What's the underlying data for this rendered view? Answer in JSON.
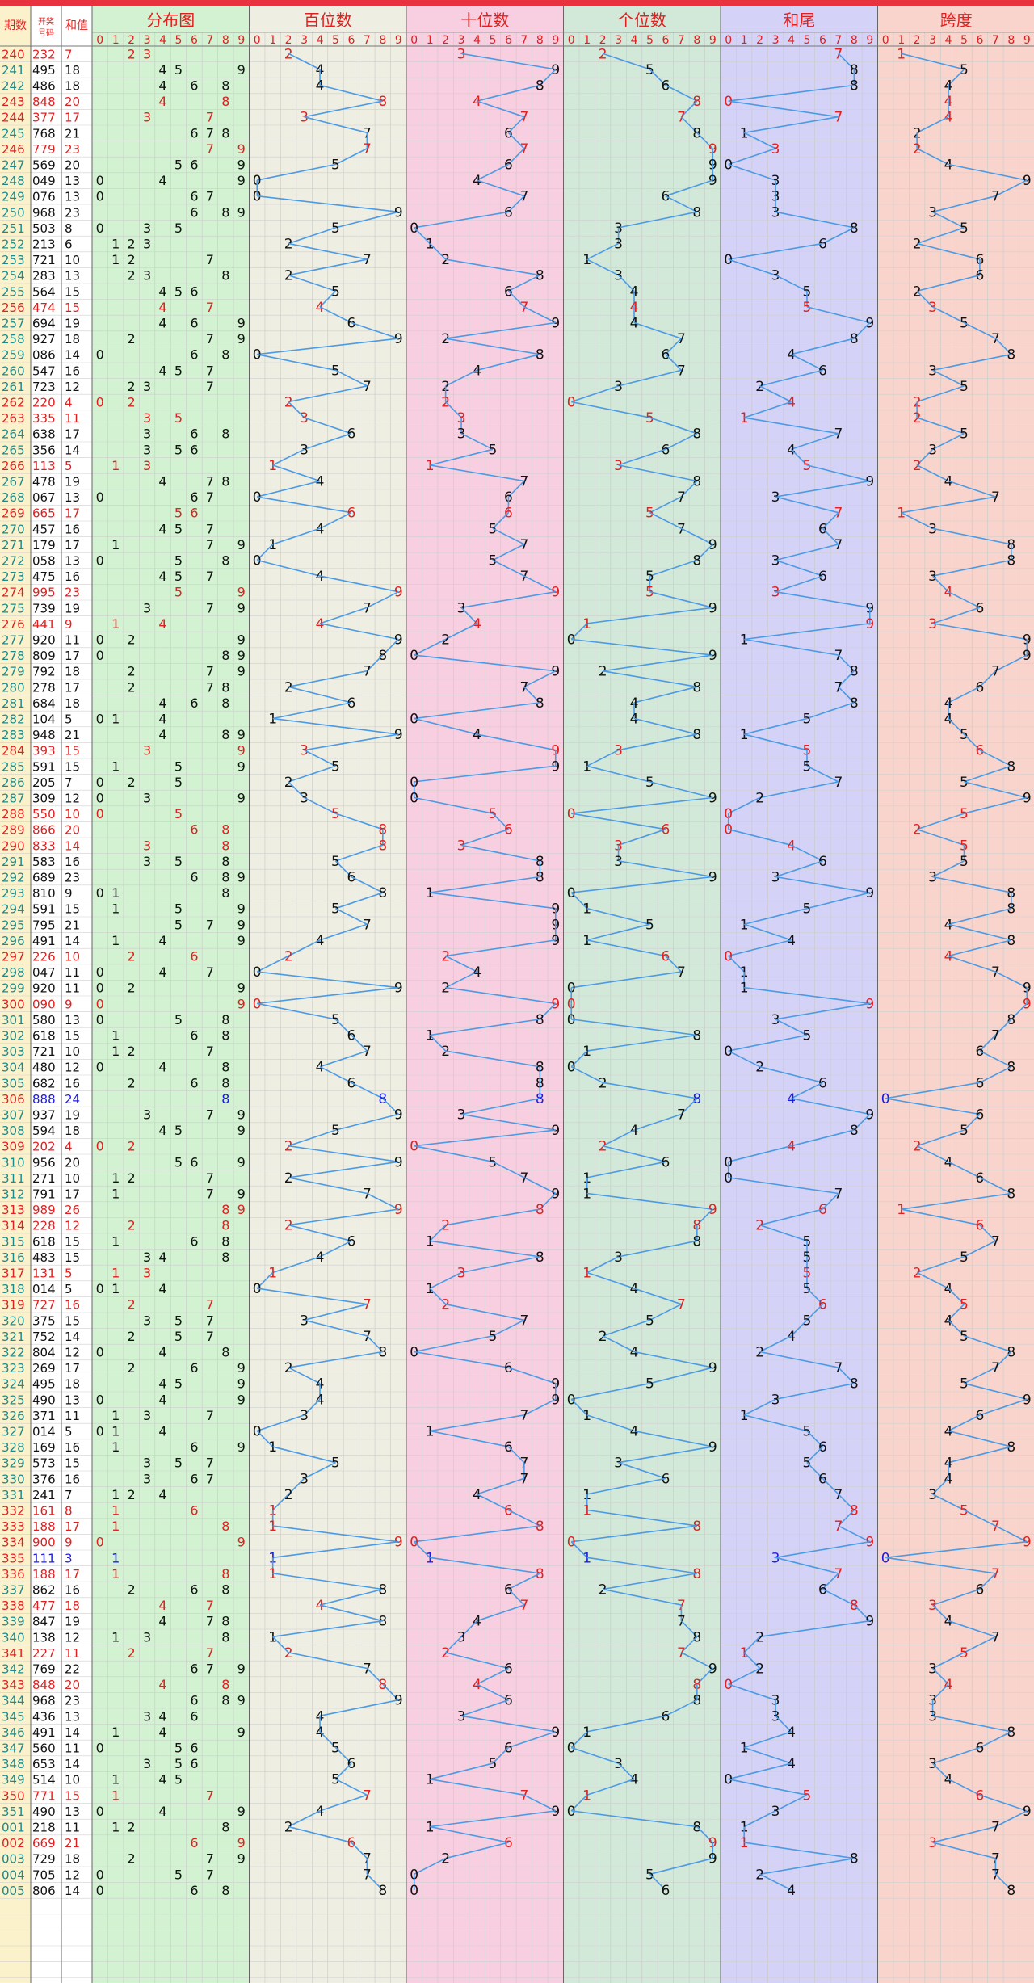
{
  "headers": {
    "period": "期数",
    "number": "开奖号码",
    "sum": "和值",
    "groups": [
      "分布图",
      "百位数",
      "十位数",
      "个位数",
      "和尾",
      "跨度"
    ],
    "digits": [
      "0",
      "1",
      "2",
      "3",
      "4",
      "5",
      "6",
      "7",
      "8",
      "9"
    ]
  },
  "colors": {
    "top_bar": "#e8323f",
    "period_bg": "#fbf2cc",
    "dist_bg": "#d2f2d2",
    "hundreds_bg": "#efeee2",
    "tens_bg": "#f8cfe0",
    "units_bg": "#d2e8d8",
    "sumtail_bg": "#d4d2f6",
    "span_bg": "#f8d4cc",
    "line": "#4a9ae6",
    "red": "#e02020",
    "blue": "#1c1ce0",
    "period_text": "#1a8a8a"
  },
  "chart_data": {
    "type": "table",
    "draws": [
      [
        "240",
        "232"
      ],
      [
        "241",
        "495"
      ],
      [
        "242",
        "486"
      ],
      [
        "243",
        "848"
      ],
      [
        "244",
        "377"
      ],
      [
        "245",
        "768"
      ],
      [
        "246",
        "779"
      ],
      [
        "247",
        "569"
      ],
      [
        "248",
        "049"
      ],
      [
        "249",
        "076"
      ],
      [
        "250",
        "968"
      ],
      [
        "251",
        "503"
      ],
      [
        "252",
        "213"
      ],
      [
        "253",
        "721"
      ],
      [
        "254",
        "283"
      ],
      [
        "255",
        "564"
      ],
      [
        "256",
        "474"
      ],
      [
        "257",
        "694"
      ],
      [
        "258",
        "927"
      ],
      [
        "259",
        "086"
      ],
      [
        "260",
        "547"
      ],
      [
        "261",
        "723"
      ],
      [
        "262",
        "220"
      ],
      [
        "263",
        "335"
      ],
      [
        "264",
        "638"
      ],
      [
        "265",
        "356"
      ],
      [
        "266",
        "113"
      ],
      [
        "267",
        "478"
      ],
      [
        "268",
        "067"
      ],
      [
        "269",
        "665"
      ],
      [
        "270",
        "457"
      ],
      [
        "271",
        "179"
      ],
      [
        "272",
        "058"
      ],
      [
        "273",
        "475"
      ],
      [
        "274",
        "995"
      ],
      [
        "275",
        "739"
      ],
      [
        "276",
        "441"
      ],
      [
        "277",
        "920"
      ],
      [
        "278",
        "809"
      ],
      [
        "279",
        "792"
      ],
      [
        "280",
        "278"
      ],
      [
        "281",
        "684"
      ],
      [
        "282",
        "104"
      ],
      [
        "283",
        "948"
      ],
      [
        "284",
        "393"
      ],
      [
        "285",
        "591"
      ],
      [
        "286",
        "205"
      ],
      [
        "287",
        "309"
      ],
      [
        "288",
        "550"
      ],
      [
        "289",
        "866"
      ],
      [
        "290",
        "833"
      ],
      [
        "291",
        "583"
      ],
      [
        "292",
        "689"
      ],
      [
        "293",
        "810"
      ],
      [
        "294",
        "591"
      ],
      [
        "295",
        "795"
      ],
      [
        "296",
        "491"
      ],
      [
        "297",
        "226"
      ],
      [
        "298",
        "047"
      ],
      [
        "299",
        "920"
      ],
      [
        "300",
        "090"
      ],
      [
        "301",
        "580"
      ],
      [
        "302",
        "618"
      ],
      [
        "303",
        "721"
      ],
      [
        "304",
        "480"
      ],
      [
        "305",
        "682"
      ],
      [
        "306",
        "888"
      ],
      [
        "307",
        "937"
      ],
      [
        "308",
        "594"
      ],
      [
        "309",
        "202"
      ],
      [
        "310",
        "956"
      ],
      [
        "311",
        "271"
      ],
      [
        "312",
        "791"
      ],
      [
        "313",
        "989"
      ],
      [
        "314",
        "228"
      ],
      [
        "315",
        "618"
      ],
      [
        "316",
        "483"
      ],
      [
        "317",
        "131"
      ],
      [
        "318",
        "014"
      ],
      [
        "319",
        "727"
      ],
      [
        "320",
        "375"
      ],
      [
        "321",
        "752"
      ],
      [
        "322",
        "804"
      ],
      [
        "323",
        "269"
      ],
      [
        "324",
        "495"
      ],
      [
        "325",
        "490"
      ],
      [
        "326",
        "371"
      ],
      [
        "327",
        "014"
      ],
      [
        "328",
        "169"
      ],
      [
        "329",
        "573"
      ],
      [
        "330",
        "376"
      ],
      [
        "331",
        "241"
      ],
      [
        "332",
        "161"
      ],
      [
        "333",
        "188"
      ],
      [
        "334",
        "900"
      ],
      [
        "335",
        "111"
      ],
      [
        "336",
        "188"
      ],
      [
        "337",
        "862"
      ],
      [
        "338",
        "477"
      ],
      [
        "339",
        "847"
      ],
      [
        "340",
        "138"
      ],
      [
        "341",
        "227"
      ],
      [
        "342",
        "769"
      ],
      [
        "343",
        "848"
      ],
      [
        "344",
        "968"
      ],
      [
        "345",
        "436"
      ],
      [
        "346",
        "491"
      ],
      [
        "347",
        "560"
      ],
      [
        "348",
        "653"
      ],
      [
        "349",
        "514"
      ],
      [
        "350",
        "771"
      ],
      [
        "351",
        "490"
      ],
      [
        "001",
        "218"
      ],
      [
        "002",
        "669"
      ],
      [
        "003",
        "729"
      ],
      [
        "004",
        "705"
      ],
      [
        "005",
        "806"
      ]
    ]
  }
}
